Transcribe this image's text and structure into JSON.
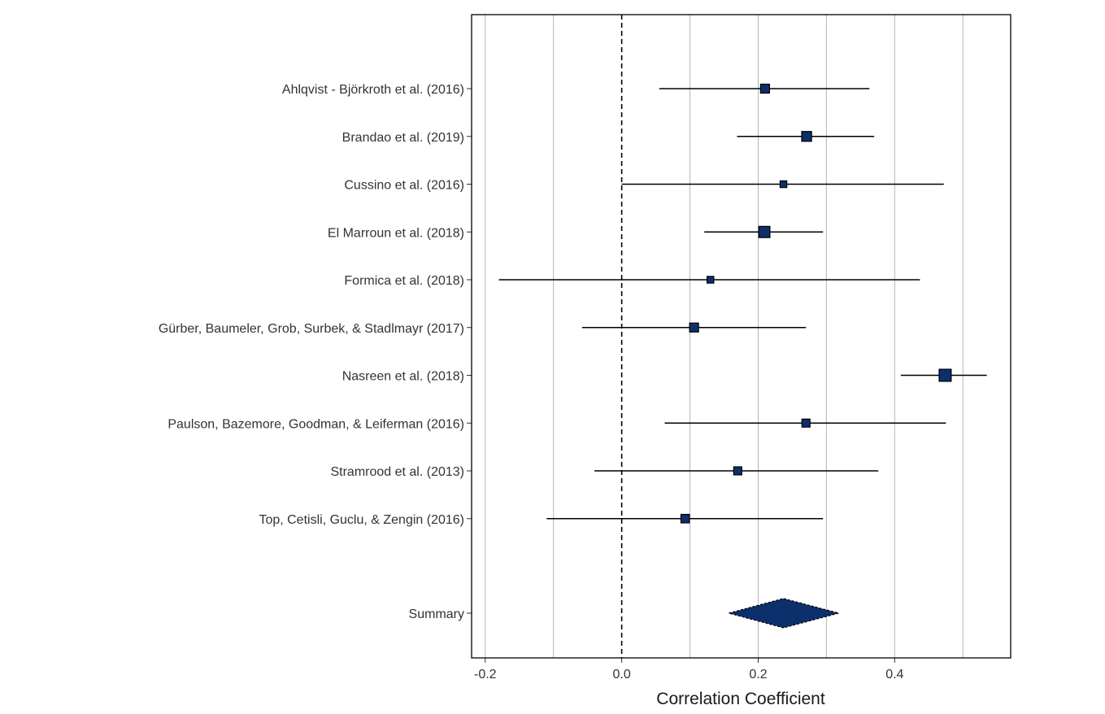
{
  "chart_data": {
    "type": "forest",
    "title": "",
    "xlabel": "Correlation Coefficient",
    "ylabel": "",
    "xlim": [
      -0.22,
      0.57
    ],
    "x_ticks": [
      -0.2,
      0.0,
      0.2,
      0.4
    ],
    "x_tick_labels": [
      "-0.2",
      "0.0",
      "0.2",
      "0.4"
    ],
    "minor_gridlines": [
      -0.1,
      0.1,
      0.3,
      0.5
    ],
    "reference_line": 0.0,
    "grid": true,
    "marker_color": "#0d2f6b",
    "studies": [
      {
        "label": "Ahlqvist - Björkroth et al. (2016)",
        "estimate": 0.21,
        "ci_low": 0.055,
        "ci_high": 0.363,
        "weight": 1.0
      },
      {
        "label": "Brandao et al. (2019)",
        "estimate": 0.271,
        "ci_low": 0.169,
        "ci_high": 0.37,
        "weight": 1.1
      },
      {
        "label": "Cussino et al. (2016)",
        "estimate": 0.237,
        "ci_low": 0.0,
        "ci_high": 0.472,
        "weight": 0.75
      },
      {
        "label": "El Marroun et al. (2018)",
        "estimate": 0.209,
        "ci_low": 0.121,
        "ci_high": 0.295,
        "weight": 1.25
      },
      {
        "label": "Formica et al. (2018)",
        "estimate": 0.13,
        "ci_low": -0.18,
        "ci_high": 0.437,
        "weight": 0.75
      },
      {
        "label": "Gürber, Baumeler, Grob, Surbek, & Stadlmayr (2017)",
        "estimate": 0.106,
        "ci_low": -0.058,
        "ci_high": 0.27,
        "weight": 1.0
      },
      {
        "label": "Nasreen et al. (2018)",
        "estimate": 0.474,
        "ci_low": 0.409,
        "ci_high": 0.535,
        "weight": 1.35
      },
      {
        "label": "Paulson, Bazemore, Goodman, & Leiferman (2016)",
        "estimate": 0.27,
        "ci_low": 0.063,
        "ci_high": 0.475,
        "weight": 0.9
      },
      {
        "label": "Stramrood et al. (2013)",
        "estimate": 0.17,
        "ci_low": -0.04,
        "ci_high": 0.376,
        "weight": 0.9
      },
      {
        "label": "Top, Cetisli, Guclu, & Zengin (2016)",
        "estimate": 0.093,
        "ci_low": -0.11,
        "ci_high": 0.295,
        "weight": 0.95
      }
    ],
    "summary": {
      "label": "Summary",
      "estimate": 0.237,
      "ci_low": 0.157,
      "ci_high": 0.318
    }
  }
}
